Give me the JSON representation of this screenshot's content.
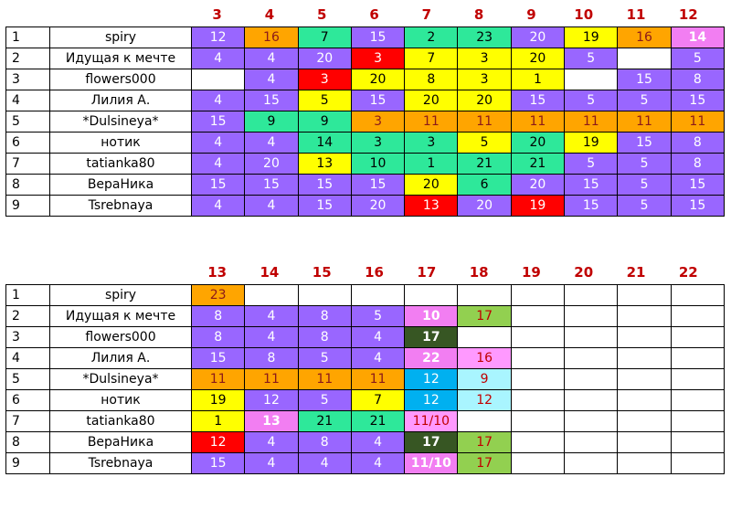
{
  "colors": {
    "purple": "#9966ff",
    "orange": "#ffa500",
    "green": "#2ee89a",
    "yellow": "#ffff00",
    "red": "#ff0000",
    "pink": "#f27ef2",
    "lgreen": "#92d050",
    "dgreen": "#375623",
    "lpink": "#ff99ff",
    "cyan": "#00b0f0",
    "lcyan": "#a9f5ff",
    "header_red": "#c00000"
  },
  "tables": [
    {
      "columns": [
        "3",
        "4",
        "5",
        "6",
        "7",
        "8",
        "9",
        "10",
        "11",
        "12"
      ],
      "rows": [
        {
          "num": "1",
          "name": "spiry",
          "cells": [
            [
              "12",
              "purple"
            ],
            [
              "16",
              "orange"
            ],
            [
              "7",
              "green"
            ],
            [
              "15",
              "purple"
            ],
            [
              "2",
              "green"
            ],
            [
              "23",
              "green"
            ],
            [
              "20",
              "purple"
            ],
            [
              "19",
              "yellow"
            ],
            [
              "16",
              "orange"
            ],
            [
              "14",
              "pink"
            ]
          ]
        },
        {
          "num": "2",
          "name": "Идущая к мечте",
          "cells": [
            [
              "4",
              "purple"
            ],
            [
              "4",
              "purple"
            ],
            [
              "20",
              "purple"
            ],
            [
              "3",
              "red"
            ],
            [
              "7",
              "yellow"
            ],
            [
              "3",
              "yellow"
            ],
            [
              "20",
              "yellow"
            ],
            [
              "5",
              "purple"
            ],
            [
              "",
              "white"
            ],
            [
              "5",
              "purple"
            ]
          ]
        },
        {
          "num": "3",
          "name": "flowers000",
          "cells": [
            [
              "",
              "white"
            ],
            [
              "4",
              "purple"
            ],
            [
              "3",
              "red"
            ],
            [
              "20",
              "yellow"
            ],
            [
              "8",
              "yellow"
            ],
            [
              "3",
              "yellow"
            ],
            [
              "1",
              "yellow"
            ],
            [
              "",
              "white"
            ],
            [
              "15",
              "purple"
            ],
            [
              "8",
              "purple"
            ]
          ]
        },
        {
          "num": "4",
          "name": "Лилия А.",
          "cells": [
            [
              "4",
              "purple"
            ],
            [
              "15",
              "purple"
            ],
            [
              "5",
              "yellow"
            ],
            [
              "15",
              "purple"
            ],
            [
              "20",
              "yellow"
            ],
            [
              "20",
              "yellow"
            ],
            [
              "15",
              "purple"
            ],
            [
              "5",
              "purple"
            ],
            [
              "5",
              "purple"
            ],
            [
              "15",
              "purple"
            ]
          ]
        },
        {
          "num": "5",
          "name": "*Dulsineya*",
          "cells": [
            [
              "15",
              "purple"
            ],
            [
              "9",
              "green"
            ],
            [
              "9",
              "green"
            ],
            [
              "3",
              "orange"
            ],
            [
              "11",
              "orange"
            ],
            [
              "11",
              "orange"
            ],
            [
              "11",
              "orange"
            ],
            [
              "11",
              "orange"
            ],
            [
              "11",
              "orange"
            ],
            [
              "11",
              "orange"
            ]
          ]
        },
        {
          "num": "6",
          "name": "нотик",
          "cells": [
            [
              "4",
              "purple"
            ],
            [
              "4",
              "purple"
            ],
            [
              "14",
              "green"
            ],
            [
              "3",
              "green"
            ],
            [
              "3",
              "green"
            ],
            [
              "5",
              "yellow"
            ],
            [
              "20",
              "green"
            ],
            [
              "19",
              "yellow"
            ],
            [
              "15",
              "purple"
            ],
            [
              "8",
              "purple"
            ]
          ]
        },
        {
          "num": "7",
          "name": "tatianka80",
          "cells": [
            [
              "4",
              "purple"
            ],
            [
              "20",
              "purple"
            ],
            [
              "13",
              "yellow"
            ],
            [
              "10",
              "green"
            ],
            [
              "1",
              "green"
            ],
            [
              "21",
              "green"
            ],
            [
              "21",
              "green"
            ],
            [
              "5",
              "purple"
            ],
            [
              "5",
              "purple"
            ],
            [
              "8",
              "purple"
            ]
          ]
        },
        {
          "num": "8",
          "name": "ВераНика",
          "cells": [
            [
              "15",
              "purple"
            ],
            [
              "15",
              "purple"
            ],
            [
              "15",
              "purple"
            ],
            [
              "15",
              "purple"
            ],
            [
              "20",
              "yellow"
            ],
            [
              "6",
              "green"
            ],
            [
              "20",
              "purple"
            ],
            [
              "15",
              "purple"
            ],
            [
              "5",
              "purple"
            ],
            [
              "15",
              "purple"
            ]
          ]
        },
        {
          "num": "9",
          "name": "Tsrebnaya",
          "cells": [
            [
              "4",
              "purple"
            ],
            [
              "4",
              "purple"
            ],
            [
              "15",
              "purple"
            ],
            [
              "20",
              "purple"
            ],
            [
              "13",
              "red"
            ],
            [
              "20",
              "purple"
            ],
            [
              "19",
              "red"
            ],
            [
              "15",
              "purple"
            ],
            [
              "5",
              "purple"
            ],
            [
              "15",
              "purple"
            ]
          ]
        }
      ]
    },
    {
      "columns": [
        "13",
        "14",
        "15",
        "16",
        "17",
        "18",
        "19",
        "20",
        "21",
        "22"
      ],
      "rows": [
        {
          "num": "1",
          "name": "spiry",
          "cells": [
            [
              "23",
              "orange"
            ],
            [
              "",
              "white"
            ],
            [
              "",
              "white"
            ],
            [
              "",
              "white"
            ],
            [
              "",
              "white"
            ],
            [
              "",
              "white"
            ],
            [
              "",
              "white"
            ],
            [
              "",
              "white"
            ],
            [
              "",
              "white"
            ],
            [
              "",
              "white"
            ]
          ]
        },
        {
          "num": "2",
          "name": "Идущая к мечте",
          "cells": [
            [
              "8",
              "purple"
            ],
            [
              "4",
              "purple"
            ],
            [
              "8",
              "purple"
            ],
            [
              "5",
              "purple"
            ],
            [
              "10",
              "pink"
            ],
            [
              "17",
              "lgreen"
            ],
            [
              "",
              "white"
            ],
            [
              "",
              "white"
            ],
            [
              "",
              "white"
            ],
            [
              "",
              "white"
            ]
          ]
        },
        {
          "num": "3",
          "name": "flowers000",
          "cells": [
            [
              "8",
              "purple"
            ],
            [
              "4",
              "purple"
            ],
            [
              "8",
              "purple"
            ],
            [
              "4",
              "purple"
            ],
            [
              "17",
              "dgreen"
            ],
            [
              "",
              "white"
            ],
            [
              "",
              "white"
            ],
            [
              "",
              "white"
            ],
            [
              "",
              "white"
            ],
            [
              "",
              "white"
            ]
          ]
        },
        {
          "num": "4",
          "name": "Лилия А.",
          "cells": [
            [
              "15",
              "purple"
            ],
            [
              "8",
              "purple"
            ],
            [
              "5",
              "purple"
            ],
            [
              "4",
              "purple"
            ],
            [
              "22",
              "pink"
            ],
            [
              "16",
              "lpink"
            ],
            [
              "",
              "white"
            ],
            [
              "",
              "white"
            ],
            [
              "",
              "white"
            ],
            [
              "",
              "white"
            ]
          ]
        },
        {
          "num": "5",
          "name": "*Dulsineya*",
          "cells": [
            [
              "11",
              "orange"
            ],
            [
              "11",
              "orange"
            ],
            [
              "11",
              "orange"
            ],
            [
              "11",
              "orange"
            ],
            [
              "12",
              "cyan"
            ],
            [
              "9",
              "lcyan"
            ],
            [
              "",
              "white"
            ],
            [
              "",
              "white"
            ],
            [
              "",
              "white"
            ],
            [
              "",
              "white"
            ]
          ]
        },
        {
          "num": "6",
          "name": "нотик",
          "cells": [
            [
              "19",
              "yellow"
            ],
            [
              "12",
              "purple"
            ],
            [
              "5",
              "purple"
            ],
            [
              "7",
              "yellow"
            ],
            [
              "12",
              "cyan"
            ],
            [
              "12",
              "lcyan"
            ],
            [
              "",
              "white"
            ],
            [
              "",
              "white"
            ],
            [
              "",
              "white"
            ],
            [
              "",
              "white"
            ]
          ]
        },
        {
          "num": "7",
          "name": "tatianka80",
          "cells": [
            [
              "1",
              "yellow"
            ],
            [
              "13",
              "pink"
            ],
            [
              "21",
              "green"
            ],
            [
              "21",
              "green"
            ],
            [
              "11/10",
              "lpink"
            ],
            [
              "",
              "white"
            ],
            [
              "",
              "white"
            ],
            [
              "",
              "white"
            ],
            [
              "",
              "white"
            ],
            [
              "",
              "white"
            ]
          ]
        },
        {
          "num": "8",
          "name": "ВераНика",
          "cells": [
            [
              "12",
              "red"
            ],
            [
              "4",
              "purple"
            ],
            [
              "8",
              "purple"
            ],
            [
              "4",
              "purple"
            ],
            [
              "17",
              "dgreen"
            ],
            [
              "17",
              "lgreen"
            ],
            [
              "",
              "white"
            ],
            [
              "",
              "white"
            ],
            [
              "",
              "white"
            ],
            [
              "",
              "white"
            ]
          ]
        },
        {
          "num": "9",
          "name": "Tsrebnaya",
          "cells": [
            [
              "15",
              "purple"
            ],
            [
              "4",
              "purple"
            ],
            [
              "4",
              "purple"
            ],
            [
              "4",
              "purple"
            ],
            [
              "11/10",
              "pink"
            ],
            [
              "17",
              "lgreen"
            ],
            [
              "",
              "white"
            ],
            [
              "",
              "white"
            ],
            [
              "",
              "white"
            ],
            [
              "",
              "white"
            ]
          ]
        }
      ]
    }
  ]
}
